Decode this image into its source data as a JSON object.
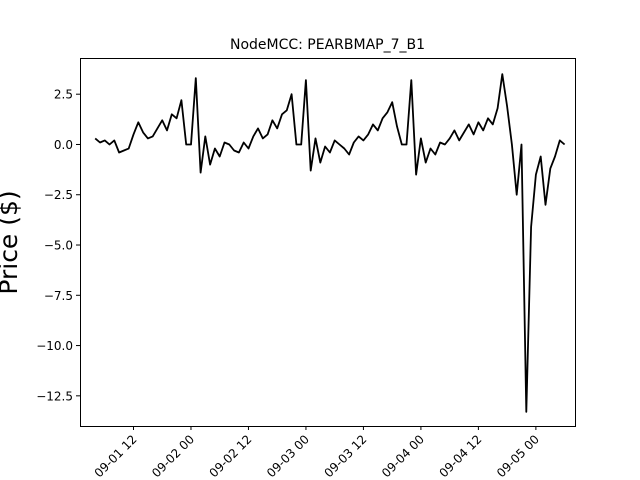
{
  "chart_data": {
    "type": "line",
    "title": "NodeMCC: PEARBMAP_7_B1",
    "xlabel": "",
    "ylabel": "Price ($)",
    "xlim": [
      "2025-09-01 00:50",
      "2025-09-05 08:10"
    ],
    "ylim": [
      -14.0,
      4.3
    ],
    "x_ticks": [
      "2025-09-01 12:00",
      "2025-09-02 00:00",
      "2025-09-02 12:00",
      "2025-09-03 00:00",
      "2025-09-03 12:00",
      "2025-09-04 00:00",
      "2025-09-04 12:00",
      "2025-09-05 00:00"
    ],
    "x_tick_labels": [
      "09-01 12",
      "09-02 00",
      "09-02 12",
      "09-03 00",
      "09-03 12",
      "09-04 00",
      "09-04 12",
      "09-05 00"
    ],
    "y_ticks": [
      2.5,
      0.0,
      -2.5,
      -5.0,
      -7.5,
      -10.0,
      -12.5
    ],
    "y_tick_labels": [
      "2.5",
      "0.0",
      "−2.5",
      "−5.0",
      "−7.5",
      "−10.0",
      "−12.5"
    ],
    "grid": false,
    "line_color": "#000000",
    "series": [
      {
        "x": [
          "2025-09-01 04:00",
          "2025-09-01 05:00",
          "2025-09-01 06:00",
          "2025-09-01 07:00",
          "2025-09-01 08:00",
          "2025-09-01 09:00",
          "2025-09-01 10:00",
          "2025-09-01 11:00",
          "2025-09-01 12:00",
          "2025-09-01 13:00",
          "2025-09-01 14:00",
          "2025-09-01 15:00",
          "2025-09-01 16:00",
          "2025-09-01 17:00",
          "2025-09-01 18:00",
          "2025-09-01 19:00",
          "2025-09-01 20:00",
          "2025-09-01 21:00",
          "2025-09-01 22:00",
          "2025-09-01 23:00",
          "2025-09-02 00:00",
          "2025-09-02 01:00",
          "2025-09-02 02:00",
          "2025-09-02 03:00",
          "2025-09-02 04:00",
          "2025-09-02 05:00",
          "2025-09-02 06:00",
          "2025-09-02 07:00",
          "2025-09-02 08:00",
          "2025-09-02 09:00",
          "2025-09-02 10:00",
          "2025-09-02 11:00",
          "2025-09-02 12:00",
          "2025-09-02 13:00",
          "2025-09-02 14:00",
          "2025-09-02 15:00",
          "2025-09-02 16:00",
          "2025-09-02 17:00",
          "2025-09-02 18:00",
          "2025-09-02 19:00",
          "2025-09-02 20:00",
          "2025-09-02 21:00",
          "2025-09-02 22:00",
          "2025-09-02 23:00",
          "2025-09-03 00:00",
          "2025-09-03 01:00",
          "2025-09-03 02:00",
          "2025-09-03 03:00",
          "2025-09-03 04:00",
          "2025-09-03 05:00",
          "2025-09-03 06:00",
          "2025-09-03 07:00",
          "2025-09-03 08:00",
          "2025-09-03 09:00",
          "2025-09-03 10:00",
          "2025-09-03 11:00",
          "2025-09-03 12:00",
          "2025-09-03 13:00",
          "2025-09-03 14:00",
          "2025-09-03 15:00",
          "2025-09-03 16:00",
          "2025-09-03 17:00",
          "2025-09-03 18:00",
          "2025-09-03 19:00",
          "2025-09-03 20:00",
          "2025-09-03 21:00",
          "2025-09-03 22:00",
          "2025-09-03 23:00",
          "2025-09-04 00:00",
          "2025-09-04 01:00",
          "2025-09-04 02:00",
          "2025-09-04 03:00",
          "2025-09-04 04:00",
          "2025-09-04 05:00",
          "2025-09-04 06:00",
          "2025-09-04 07:00",
          "2025-09-04 08:00",
          "2025-09-04 09:00",
          "2025-09-04 10:00",
          "2025-09-04 11:00",
          "2025-09-04 12:00",
          "2025-09-04 13:00",
          "2025-09-04 14:00",
          "2025-09-04 15:00",
          "2025-09-04 16:00",
          "2025-09-04 17:00",
          "2025-09-04 18:00",
          "2025-09-04 19:00",
          "2025-09-04 20:00",
          "2025-09-04 21:00",
          "2025-09-04 22:00",
          "2025-09-04 23:00",
          "2025-09-05 00:00",
          "2025-09-05 01:00",
          "2025-09-05 02:00",
          "2025-09-05 03:00",
          "2025-09-05 04:00",
          "2025-09-05 05:00",
          "2025-09-05 06:00"
        ],
        "y": [
          0.3,
          0.1,
          0.2,
          0.0,
          0.2,
          -0.4,
          -0.3,
          -0.2,
          0.5,
          1.1,
          0.6,
          0.3,
          0.4,
          0.8,
          1.2,
          0.7,
          1.5,
          1.3,
          2.2,
          0.0,
          0.0,
          3.3,
          -1.4,
          0.4,
          -1.0,
          -0.2,
          -0.6,
          0.1,
          0.0,
          -0.3,
          -0.4,
          0.1,
          -0.2,
          0.4,
          0.8,
          0.3,
          0.5,
          1.2,
          0.8,
          1.5,
          1.7,
          2.5,
          0.0,
          0.0,
          3.2,
          -1.3,
          0.3,
          -0.9,
          -0.1,
          -0.4,
          0.2,
          0.0,
          -0.2,
          -0.5,
          0.1,
          0.4,
          0.2,
          0.5,
          1.0,
          0.7,
          1.3,
          1.6,
          2.1,
          0.9,
          0.0,
          0.0,
          3.2,
          -1.5,
          0.3,
          -0.9,
          -0.2,
          -0.5,
          0.1,
          0.0,
          0.3,
          0.7,
          0.2,
          0.6,
          1.0,
          0.5,
          1.1,
          0.7,
          1.3,
          1.0,
          1.8,
          3.5,
          1.9,
          0.0,
          -2.5,
          0.0,
          -13.3,
          -4.1,
          -1.5,
          -0.6,
          -3.0,
          -1.2,
          -0.6,
          0.2,
          0.0
        ]
      }
    ]
  }
}
